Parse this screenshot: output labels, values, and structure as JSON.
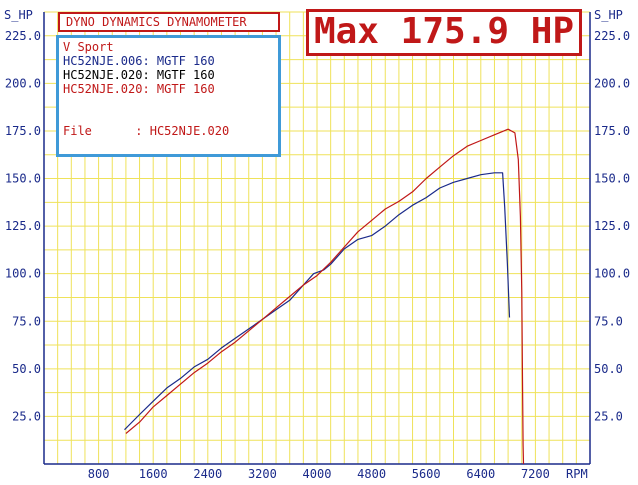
{
  "header": {
    "title": "DYNO DYNAMICS DYNAMOMETER",
    "max_label": "Max 175.9 HP"
  },
  "legend": {
    "heading": "V Sport",
    "runs": [
      {
        "text": "HC52NJE.006: MGTF 160",
        "color": "#1a2a8a"
      },
      {
        "text": "HC52NJE.020: MGTF 160",
        "color": "#000000"
      },
      {
        "text": "HC52NJE.020: MGTF 160",
        "color": "#c01818"
      }
    ],
    "file_label": "File",
    "file_value": ": HC52NJE.020"
  },
  "colors": {
    "grid": "#efe25a",
    "axis": "#1a2a8a",
    "series_blue": "#1a2a8a",
    "series_red": "#c01818",
    "label_left": "#1a2a8a",
    "label_right": "#1a2a8a"
  },
  "chart_data": {
    "type": "line",
    "xlabel": "RPM",
    "ylabel_left": "S_HP",
    "ylabel_right": "S_HP",
    "xlim": [
      0,
      8000
    ],
    "ylim": [
      0,
      237.5
    ],
    "x_ticks": [
      800,
      1600,
      2400,
      3200,
      4000,
      4800,
      5600,
      6400,
      7200
    ],
    "y_ticks": [
      "25.0",
      "50.0",
      "75.0",
      "100.0",
      "125.0",
      "150.0",
      "175.0",
      "200.0",
      "225.0"
    ],
    "y_tick_values": [
      25,
      50,
      75,
      100,
      125,
      150,
      175,
      200,
      225
    ],
    "grid": true,
    "series": [
      {
        "name": "HC52NJE.006",
        "color": "#1a2a8a",
        "points": [
          [
            1180,
            18
          ],
          [
            1400,
            26
          ],
          [
            1600,
            33
          ],
          [
            1800,
            40
          ],
          [
            2000,
            45
          ],
          [
            2200,
            51
          ],
          [
            2400,
            55
          ],
          [
            2600,
            61
          ],
          [
            2800,
            66
          ],
          [
            3000,
            71
          ],
          [
            3200,
            76
          ],
          [
            3400,
            81
          ],
          [
            3600,
            86
          ],
          [
            3800,
            94
          ],
          [
            3950,
            100
          ],
          [
            4100,
            102
          ],
          [
            4200,
            105
          ],
          [
            4400,
            113
          ],
          [
            4600,
            118
          ],
          [
            4800,
            120
          ],
          [
            5000,
            125
          ],
          [
            5200,
            131
          ],
          [
            5400,
            136
          ],
          [
            5600,
            140
          ],
          [
            5800,
            145
          ],
          [
            6000,
            148
          ],
          [
            6200,
            150
          ],
          [
            6400,
            152
          ],
          [
            6600,
            153
          ],
          [
            6720,
            153
          ],
          [
            6750,
            135
          ],
          [
            6790,
            105
          ],
          [
            6820,
            77
          ]
        ]
      },
      {
        "name": "HC52NJE.020",
        "color": "#c01818",
        "points": [
          [
            1200,
            16
          ],
          [
            1400,
            22
          ],
          [
            1600,
            30
          ],
          [
            1800,
            36
          ],
          [
            2000,
            42
          ],
          [
            2200,
            48
          ],
          [
            2400,
            53
          ],
          [
            2600,
            59
          ],
          [
            2800,
            64
          ],
          [
            3000,
            70
          ],
          [
            3200,
            76
          ],
          [
            3400,
            82
          ],
          [
            3600,
            88
          ],
          [
            3800,
            94
          ],
          [
            4000,
            99
          ],
          [
            4200,
            106
          ],
          [
            4400,
            114
          ],
          [
            4600,
            122
          ],
          [
            4800,
            128
          ],
          [
            5000,
            134
          ],
          [
            5200,
            138
          ],
          [
            5400,
            143
          ],
          [
            5600,
            150
          ],
          [
            5800,
            156
          ],
          [
            6000,
            162
          ],
          [
            6200,
            167
          ],
          [
            6400,
            170
          ],
          [
            6600,
            173
          ],
          [
            6800,
            175.9
          ],
          [
            6900,
            174
          ],
          [
            6950,
            160
          ],
          [
            6980,
            130
          ],
          [
            7000,
            90
          ],
          [
            7010,
            50
          ],
          [
            7020,
            10
          ],
          [
            7025,
            0
          ]
        ]
      }
    ]
  }
}
